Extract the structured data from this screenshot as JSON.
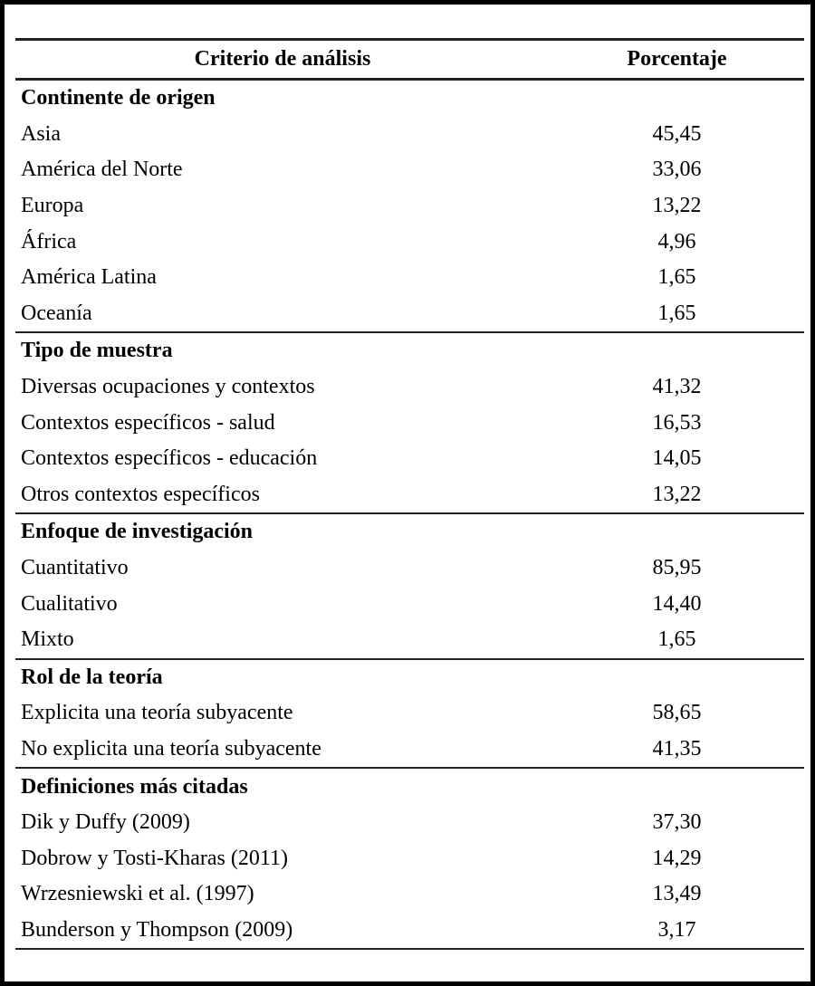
{
  "page": {
    "background_color": "#ffffff",
    "frame_color": "#000000",
    "rule_color": "#222222",
    "text_color": "#000000"
  },
  "table": {
    "col1_header": "Criterio de análisis",
    "col2_header": "Porcentaje",
    "sections": [
      {
        "title": "Continente de origen",
        "rows": [
          {
            "label": "Asia",
            "value": "45,45"
          },
          {
            "label": "América del Norte",
            "value": "33,06"
          },
          {
            "label": "Europa",
            "value": "13,22"
          },
          {
            "label": "África",
            "value": "4,96"
          },
          {
            "label": "América Latina",
            "value": "1,65"
          },
          {
            "label": "Oceanía",
            "value": "1,65"
          }
        ]
      },
      {
        "title": "Tipo de muestra",
        "rows": [
          {
            "label": "Diversas ocupaciones y contextos",
            "value": "41,32"
          },
          {
            "label": "Contextos específicos - salud",
            "value": "16,53"
          },
          {
            "label": "Contextos específicos - educación",
            "value": "14,05"
          },
          {
            "label": "Otros contextos específicos",
            "value": "13,22"
          }
        ]
      },
      {
        "title": "Enfoque de investigación",
        "rows": [
          {
            "label": "Cuantitativo",
            "value": "85,95"
          },
          {
            "label": "Cualitativo",
            "value": "14,40"
          },
          {
            "label": "Mixto",
            "value": "1,65"
          }
        ]
      },
      {
        "title": "Rol de la teoría",
        "rows": [
          {
            "label": "Explicita una teoría subyacente",
            "value": "58,65"
          },
          {
            "label": "No explicita una teoría subyacente",
            "value": "41,35"
          }
        ]
      },
      {
        "title": "Definiciones más citadas",
        "rows": [
          {
            "label": "Dik y Duffy (2009)",
            "value": "37,30"
          },
          {
            "label": "Dobrow y Tosti-Kharas (2011)",
            "value": "14,29"
          },
          {
            "label": "Wrzesniewski et al. (1997)",
            "value": "13,49"
          },
          {
            "label": "Bunderson y Thompson (2009)",
            "value": "3,17"
          }
        ]
      }
    ]
  }
}
